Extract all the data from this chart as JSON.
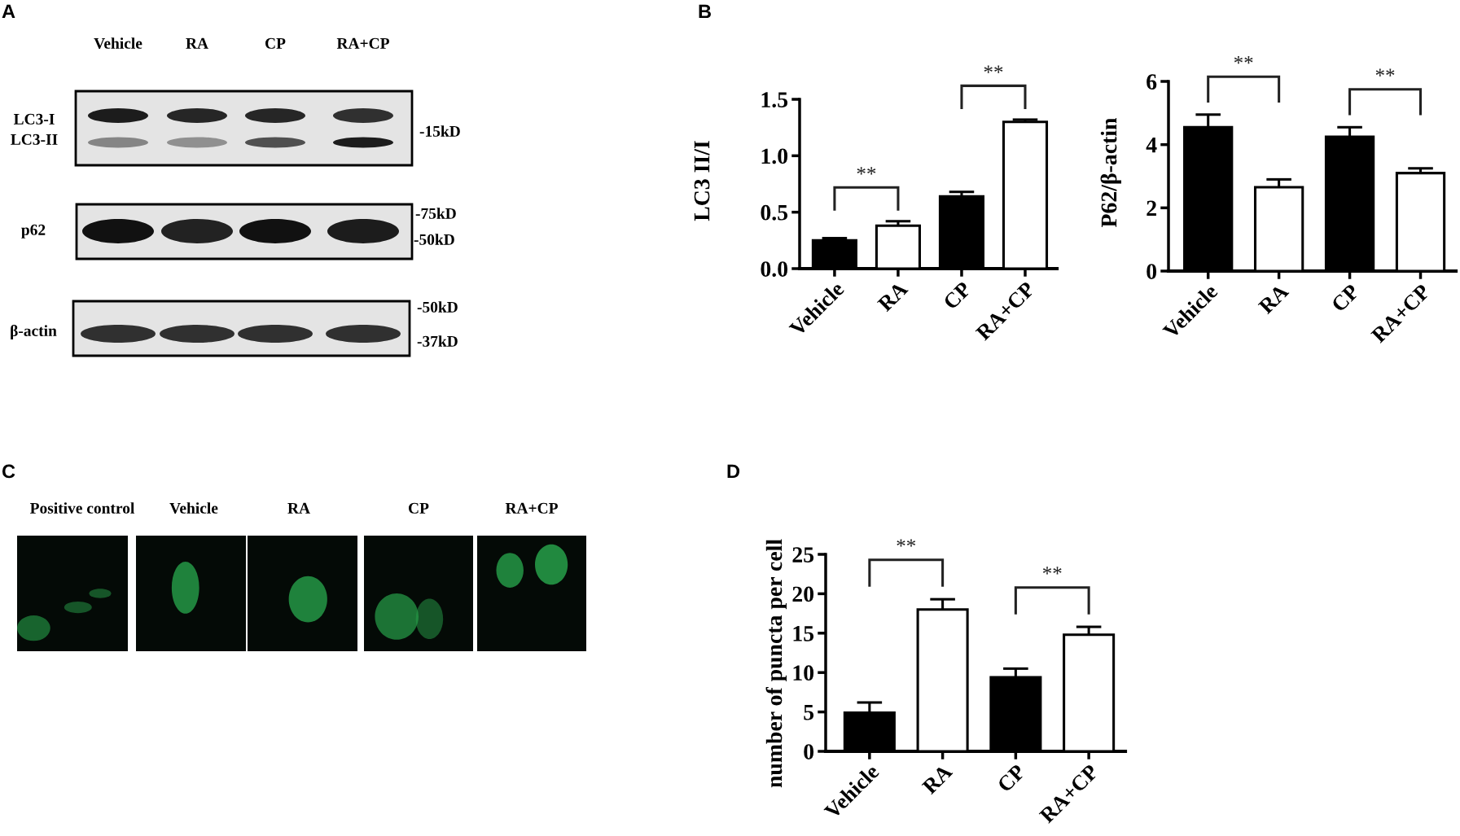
{
  "chart_data": [
    {
      "type": "other",
      "title": "A",
      "categories": [
        "Vehicle",
        "RA",
        "CP",
        "RA+CP"
      ],
      "annotations": [
        "LC3-I",
        "LC3-II",
        "p62",
        "β-actin",
        "-15kD",
        "-75kD",
        "-50kD",
        "-50kD",
        "-37kD"
      ]
    },
    {
      "type": "bar",
      "title": "B",
      "categories": [
        "Vehicle",
        "RA",
        "CP",
        "RA+CP"
      ],
      "values": [
        0.25,
        0.38,
        0.64,
        1.3
      ],
      "colors": [
        "#000000",
        "#ffffff",
        "#000000",
        "#ffffff"
      ],
      "errors": [
        [
          0.25,
          0.27
        ],
        [
          0.38,
          0.42
        ],
        [
          0.64,
          0.68
        ],
        [
          1.3,
          1.32
        ]
      ],
      "ylabel": "LC3 II/I",
      "ylim": [
        0,
        1.5
      ],
      "yticks": [
        {
          "value": 0,
          "label": "0.0"
        },
        0.5,
        {
          "value": 1,
          "label": "1.0"
        },
        1.5
      ],
      "annotations": [
        "**",
        "**"
      ]
    },
    {
      "type": "bar",
      "categories": [
        "Vehicle",
        "RA",
        "CP",
        "RA+CP"
      ],
      "values": [
        4.55,
        2.65,
        4.25,
        3.1
      ],
      "colors": [
        "#000000",
        "#ffffff",
        "#000000",
        "#ffffff"
      ],
      "errors": [
        [
          4.55,
          4.95
        ],
        [
          2.65,
          2.9
        ],
        [
          4.25,
          4.55
        ],
        [
          3.1,
          3.25
        ]
      ],
      "ylabel": "P62/β-actin",
      "ylim": [
        0,
        6
      ],
      "yticks": [
        0,
        2,
        4,
        6
      ],
      "annotations": [
        "**",
        "**"
      ]
    },
    {
      "type": "other",
      "title": "C",
      "categories": [
        "Positive control",
        "Vehicle",
        "RA",
        "CP",
        "RA+CP"
      ]
    },
    {
      "type": "bar",
      "title": "D",
      "categories": [
        "Vehicle",
        "RA",
        "CP",
        "RA+CP"
      ],
      "values": [
        4.9,
        18,
        9.4,
        14.8
      ],
      "colors": [
        "#000000",
        "#ffffff",
        "#000000",
        "#ffffff"
      ],
      "errors": [
        [
          4.9,
          6.2
        ],
        [
          18,
          19.3
        ],
        [
          9.4,
          10.5
        ],
        [
          14.8,
          15.8
        ]
      ],
      "ylabel": "number of puncta per cell",
      "ylim": [
        0,
        25
      ],
      "yticks": [
        0,
        5,
        10,
        15,
        20,
        25
      ],
      "annotations": [
        "**",
        "**"
      ]
    }
  ]
}
